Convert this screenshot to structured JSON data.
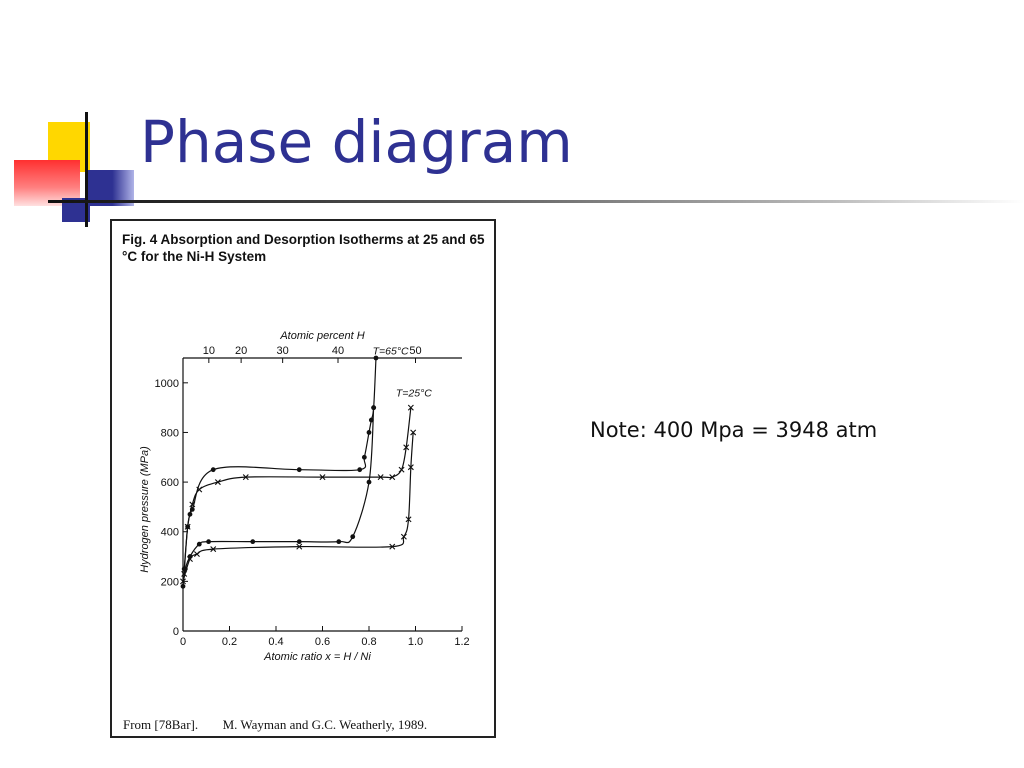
{
  "slide": {
    "title": "Phase diagram",
    "note": "Note: 400 Mpa = 3948 atm"
  },
  "colors": {
    "title": "#2e3192",
    "deco_yellow": "#ffd700",
    "deco_red": "#ff4a4a",
    "deco_blue": "#2e3192"
  },
  "figure": {
    "caption": "Fig. 4    Absorption and Desorption Isotherms at 25 and 65 °C for the Ni-H System",
    "source_left": "From [78Bar].",
    "source_right": "M. Wayman and G.C. Weatherly, 1989."
  },
  "chart_data": {
    "type": "line",
    "xlabel": "Atomic ratio x = H / Ni",
    "ylabel": "Hydrogen pressure (MPa)",
    "top_xlabel": "Atomic percent H",
    "xlim": [
      0,
      1.2
    ],
    "ylim": [
      0,
      1100
    ],
    "x_ticks": [
      0,
      0.2,
      0.4,
      0.6,
      0.8,
      1.0,
      1.2
    ],
    "x_tick_labels": [
      "0",
      "0.2",
      "0.4",
      "0.6",
      "0.8",
      "1.0",
      "1.2"
    ],
    "y_ticks": [
      0,
      200,
      400,
      600,
      800,
      1000
    ],
    "y_tick_labels": [
      "0",
      "200",
      "400",
      "600",
      "800",
      "1000"
    ],
    "top_ticks_percent": [
      10,
      20,
      30,
      40,
      50
    ],
    "top_tick_labels": [
      "10",
      "20",
      "30",
      "40",
      "50"
    ],
    "grid": false,
    "annotations": [
      {
        "text": "T=65°C",
        "x": 0.85,
        "y": 1115
      },
      {
        "text": "T=25°C",
        "x": 0.95,
        "y": 945
      }
    ],
    "series": [
      {
        "marker": "dot",
        "curve": "65C-absorption",
        "points": [
          [
            0.005,
            250
          ],
          [
            0.02,
            420
          ],
          [
            0.03,
            470
          ],
          [
            0.04,
            490
          ],
          [
            0.13,
            650
          ],
          [
            0.5,
            650
          ],
          [
            0.76,
            650
          ],
          [
            0.78,
            700
          ],
          [
            0.8,
            800
          ],
          [
            0.81,
            850
          ],
          [
            0.82,
            900
          ],
          [
            0.83,
            1100
          ]
        ]
      },
      {
        "marker": "dot",
        "curve": "65C-desorption",
        "points": [
          [
            0.0,
            180
          ],
          [
            0.01,
            250
          ],
          [
            0.03,
            300
          ],
          [
            0.07,
            350
          ],
          [
            0.11,
            360
          ],
          [
            0.3,
            360
          ],
          [
            0.5,
            360
          ],
          [
            0.67,
            360
          ],
          [
            0.73,
            380
          ],
          [
            0.8,
            600
          ],
          [
            0.82,
            900
          ]
        ]
      },
      {
        "marker": "cross",
        "curve": "25C-absorption",
        "points": [
          [
            0.005,
            230
          ],
          [
            0.02,
            420
          ],
          [
            0.04,
            510
          ],
          [
            0.07,
            570
          ],
          [
            0.15,
            600
          ],
          [
            0.27,
            620
          ],
          [
            0.6,
            620
          ],
          [
            0.85,
            620
          ],
          [
            0.9,
            620
          ],
          [
            0.94,
            650
          ],
          [
            0.96,
            740
          ],
          [
            0.98,
            900
          ]
        ]
      },
      {
        "marker": "cross",
        "curve": "25C-desorption",
        "points": [
          [
            0.0,
            200
          ],
          [
            0.03,
            290
          ],
          [
            0.06,
            310
          ],
          [
            0.13,
            330
          ],
          [
            0.5,
            340
          ],
          [
            0.9,
            340
          ],
          [
            0.95,
            380
          ],
          [
            0.97,
            450
          ],
          [
            0.98,
            660
          ],
          [
            0.99,
            800
          ]
        ]
      }
    ]
  }
}
